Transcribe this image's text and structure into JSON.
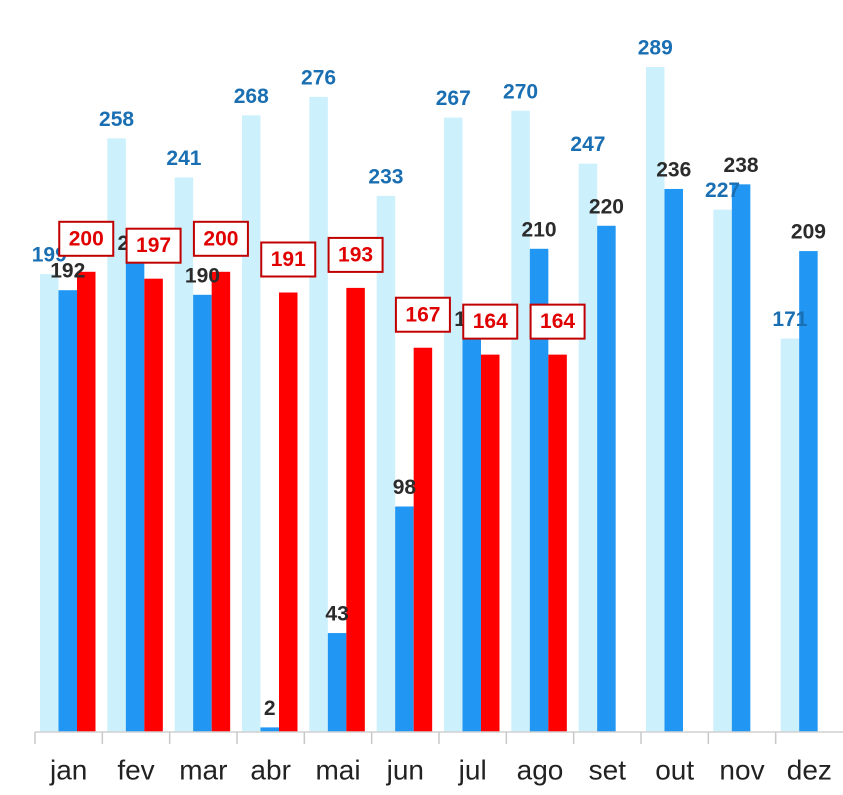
{
  "chart_data": {
    "type": "bar",
    "categories": [
      "jan",
      "fev",
      "mar",
      "abr",
      "mai",
      "jun",
      "jul",
      "ago",
      "set",
      "out",
      "nov",
      "dez"
    ],
    "series": [
      {
        "color": "#ccf1fd",
        "label_color": "#1a6fb3",
        "values": [
          199,
          258,
          241,
          268,
          276,
          233,
          267,
          270,
          247,
          289,
          227,
          171
        ]
      },
      {
        "color": "#2196f3",
        "label_color": "#2b2b2b",
        "values": [
          192,
          204,
          190,
          2,
          43,
          98,
          171,
          210,
          220,
          236,
          238,
          209
        ]
      },
      {
        "color": "#ff0000",
        "label_color": "#e00000",
        "boxed": true,
        "values": [
          200,
          197,
          200,
          191,
          193,
          167,
          164,
          164,
          null,
          null,
          null,
          null
        ]
      }
    ]
  }
}
